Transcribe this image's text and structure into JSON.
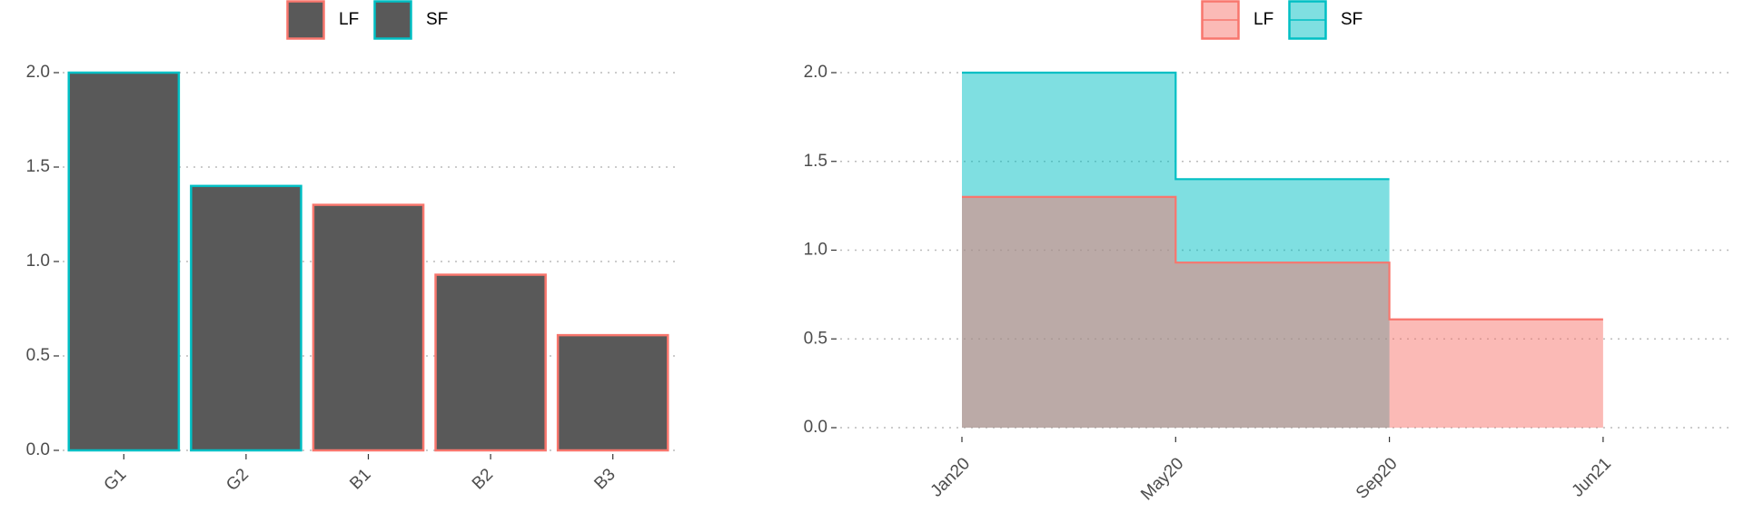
{
  "chart_data": [
    {
      "type": "bar",
      "categories": [
        "G1",
        "G2",
        "B1",
        "B2",
        "B3"
      ],
      "fill": "#595959",
      "series": [
        {
          "name": "LF",
          "color": "#F8766D",
          "values": [
            null,
            null,
            1.3,
            0.93,
            0.61
          ]
        },
        {
          "name": "SF",
          "color": "#00BFC4",
          "values": [
            2.0,
            1.4,
            null,
            null,
            null
          ]
        }
      ],
      "ylim": [
        0,
        2
      ],
      "yticks": [
        {
          "value": 0,
          "label": "0.0"
        },
        0.5,
        {
          "value": 1,
          "label": "1.0"
        },
        1.5,
        {
          "value": 2,
          "label": "2.0"
        }
      ],
      "grid": true,
      "legend": "top"
    },
    {
      "type": "step-area",
      "categories": [
        "Jan20",
        "May20",
        "Sep20",
        "Jun21"
      ],
      "series": [
        {
          "name": "LF",
          "color": "#F8766D",
          "values": [
            1.3,
            0.93,
            0.61,
            0.61
          ]
        },
        {
          "name": "SF",
          "color": "#00BFC4",
          "values": [
            2.0,
            1.4,
            1.4,
            null
          ]
        }
      ],
      "ylim": [
        0,
        2
      ],
      "yticks": [
        {
          "value": 0,
          "label": "0.0"
        },
        0.5,
        {
          "value": 1,
          "label": "1.0"
        },
        1.5,
        {
          "value": 2,
          "label": "2.0"
        }
      ],
      "grid": true,
      "legend": "top"
    }
  ]
}
